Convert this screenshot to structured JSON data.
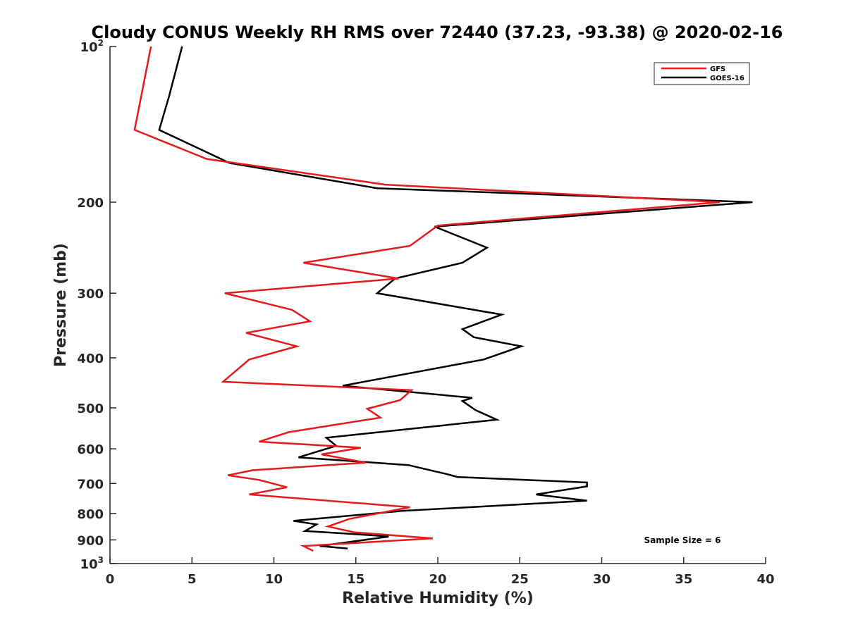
{
  "chart_data": {
    "type": "line",
    "title": "Cloudy CONUS Weekly RH RMS over 72440 (37.23, -93.38) @ 2020-02-16",
    "xlabel": "Relative Humidity (%)",
    "ylabel": "Pressure (mb)",
    "xlim": [
      0,
      40
    ],
    "ylim": [
      100,
      1000
    ],
    "y_scale": "log",
    "y_reversed": true,
    "grid": false,
    "legend_position": "top-right",
    "x_ticks": [
      "0",
      "5",
      "10",
      "15",
      "20",
      "25",
      "30",
      "35",
      "40"
    ],
    "y_ticks": [
      {
        "value": 100,
        "base": "10",
        "exp": "2"
      },
      {
        "value": 200,
        "label": "200"
      },
      {
        "value": 300,
        "label": "300"
      },
      {
        "value": 400,
        "label": "400"
      },
      {
        "value": 500,
        "label": "500"
      },
      {
        "value": 600,
        "label": "600"
      },
      {
        "value": 700,
        "label": "700"
      },
      {
        "value": 800,
        "label": "800"
      },
      {
        "value": 900,
        "label": "900"
      },
      {
        "value": 1000,
        "base": "10",
        "exp": "3"
      }
    ],
    "annotation": "Sample Size = 6",
    "series": [
      {
        "name": "GFS",
        "color": "#e41a1c",
        "points": [
          [
            2.5,
            100
          ],
          [
            1.9,
            125
          ],
          [
            1.5,
            145
          ],
          [
            5.9,
            165
          ],
          [
            16.8,
            185
          ],
          [
            37.2,
            200
          ],
          [
            20.0,
            222
          ],
          [
            18.3,
            243
          ],
          [
            11.8,
            262
          ],
          [
            17.6,
            281
          ],
          [
            7.0,
            300
          ],
          [
            11.1,
            323
          ],
          [
            12.2,
            340
          ],
          [
            8.3,
            358
          ],
          [
            11.4,
            380
          ],
          [
            8.5,
            403
          ],
          [
            6.9,
            445
          ],
          [
            18.4,
            462
          ],
          [
            17.7,
            483
          ],
          [
            15.7,
            502
          ],
          [
            16.5,
            522
          ],
          [
            10.9,
            557
          ],
          [
            9.1,
            581
          ],
          [
            15.3,
            597
          ],
          [
            12.9,
            615
          ],
          [
            15.6,
            638
          ],
          [
            8.7,
            660
          ],
          [
            7.2,
            675
          ],
          [
            9.1,
            689
          ],
          [
            10.8,
            712
          ],
          [
            8.5,
            735
          ],
          [
            18.3,
            778
          ],
          [
            14.6,
            820
          ],
          [
            13.3,
            848
          ],
          [
            14.9,
            870
          ],
          [
            19.7,
            894
          ],
          [
            11.8,
            925
          ],
          [
            12.4,
            945
          ]
        ]
      },
      {
        "name": "GOES-16",
        "color": "#000000",
        "points": [
          [
            4.4,
            100
          ],
          [
            3.6,
            125
          ],
          [
            3.0,
            145
          ],
          [
            7.3,
            168
          ],
          [
            16.3,
            188
          ],
          [
            39.2,
            200
          ],
          [
            19.8,
            223
          ],
          [
            23.0,
            245
          ],
          [
            21.5,
            262
          ],
          [
            17.4,
            281
          ],
          [
            16.3,
            300
          ],
          [
            23.9,
            330
          ],
          [
            21.5,
            352
          ],
          [
            22.2,
            365
          ],
          [
            25.1,
            380
          ],
          [
            22.8,
            403
          ],
          [
            14.2,
            453
          ],
          [
            22.1,
            478
          ],
          [
            21.5,
            485
          ],
          [
            22.3,
            505
          ],
          [
            23.6,
            527
          ],
          [
            13.2,
            571
          ],
          [
            13.8,
            592
          ],
          [
            11.5,
            623
          ],
          [
            18.2,
            645
          ],
          [
            20.6,
            672
          ],
          [
            21.2,
            680
          ],
          [
            29.1,
            697
          ],
          [
            29.1,
            709
          ],
          [
            26.0,
            735
          ],
          [
            29.1,
            756
          ],
          [
            17.8,
            791
          ],
          [
            11.2,
            827
          ],
          [
            12.6,
            840
          ],
          [
            11.9,
            865
          ],
          [
            16.1,
            882
          ],
          [
            17.0,
            887
          ],
          [
            12.8,
            925
          ],
          [
            14.5,
            935
          ]
        ]
      }
    ]
  }
}
